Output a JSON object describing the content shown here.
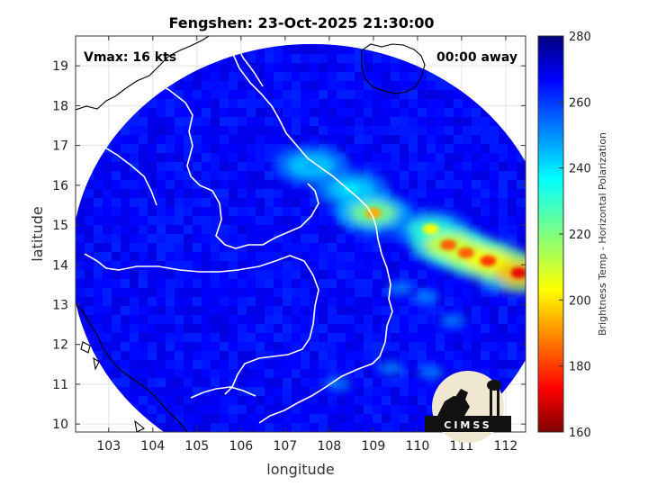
{
  "chart_data": {
    "type": "heatmap",
    "title": "Fengshen: 23-Oct-2025 21:30:00",
    "xlabel": "longitude",
    "ylabel": "latitude",
    "xlim": [
      102.25,
      112.45
    ],
    "ylim": [
      9.8,
      19.75
    ],
    "xticks": [
      103,
      104,
      105,
      106,
      107,
      108,
      109,
      110,
      111,
      112
    ],
    "yticks": [
      10,
      11,
      12,
      13,
      14,
      15,
      16,
      17,
      18,
      19
    ],
    "grid": true,
    "annotations": {
      "vmax": "Vmax: 16 kts",
      "away": "00:00 away"
    },
    "colorbar": {
      "label": "Brightness Temp - Horizontal Polarization",
      "range": [
        160,
        280
      ],
      "ticks": [
        160,
        180,
        200,
        220,
        240,
        260,
        280
      ],
      "colormap": "jet"
    },
    "swath": {
      "center": [
        107.6,
        14.1
      ],
      "radius_deg": 5.45,
      "background_value": 265
    },
    "convective_band": {
      "description_points": [
        {
          "lon": 107.6,
          "lat": 16.5,
          "value": 245
        },
        {
          "lon": 108.5,
          "lat": 15.9,
          "value": 238
        },
        {
          "lon": 109.0,
          "lat": 15.3,
          "value": 195
        },
        {
          "lon": 110.3,
          "lat": 14.9,
          "value": 205
        },
        {
          "lon": 110.7,
          "lat": 14.5,
          "value": 185
        },
        {
          "lon": 111.1,
          "lat": 14.3,
          "value": 185
        },
        {
          "lon": 111.6,
          "lat": 14.1,
          "value": 180
        },
        {
          "lon": 112.3,
          "lat": 13.8,
          "value": 172
        }
      ]
    }
  },
  "logo": {
    "text": "CIMSS"
  }
}
